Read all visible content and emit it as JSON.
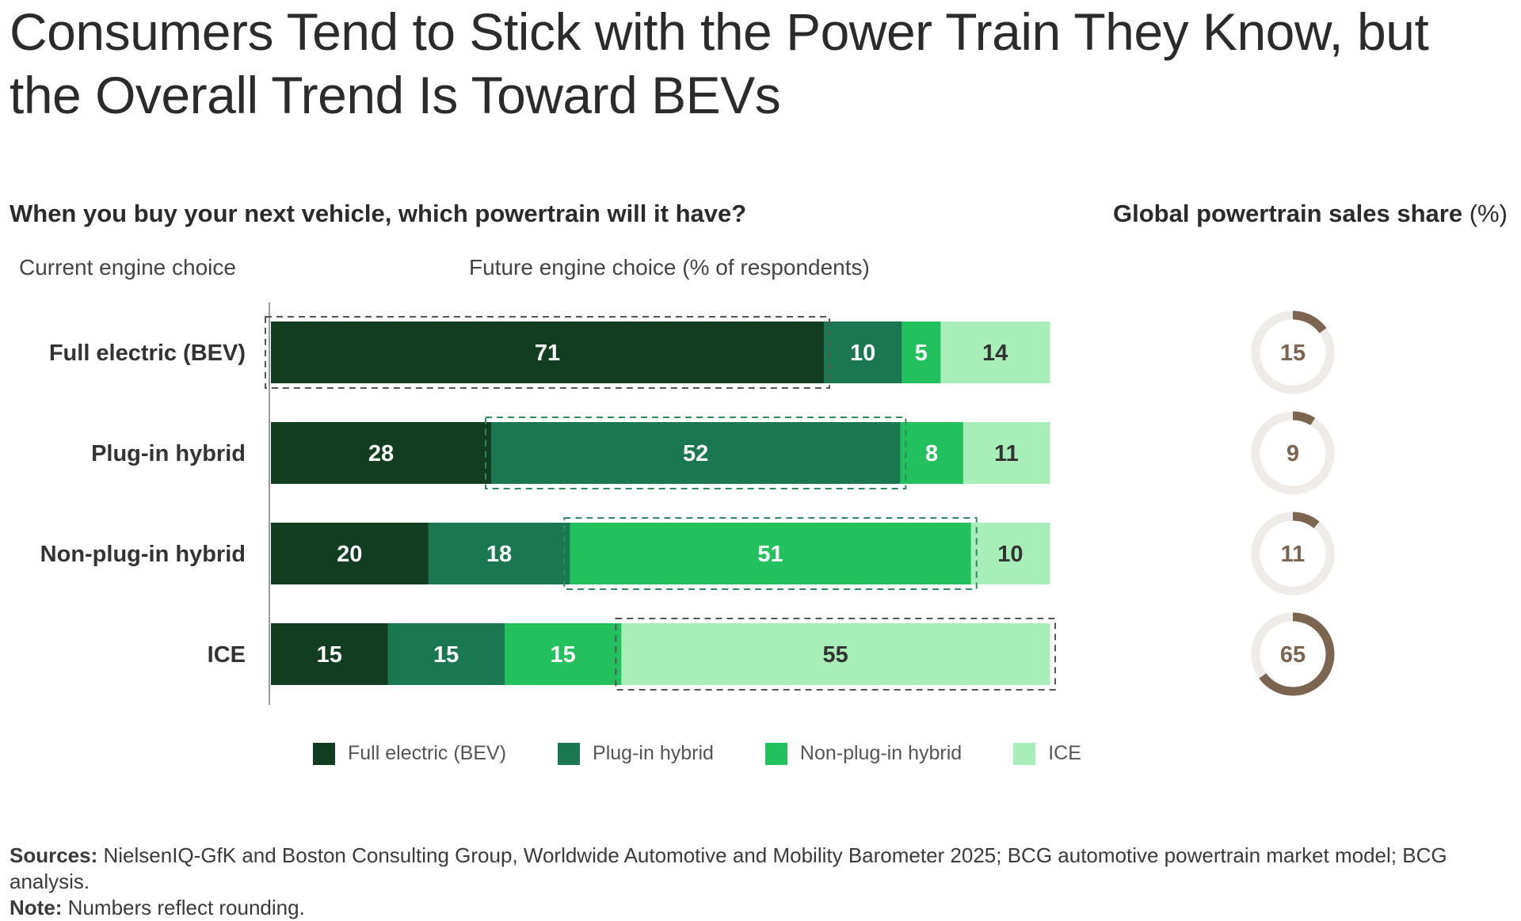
{
  "title": "Consumers Tend to Stick with the Power Train They Know, but the Overall Trend Is Toward BEVs",
  "question": "When you buy your next vehicle, which powertrain will it have?",
  "donut_title": "Global powertrain sales share",
  "donut_unit": "(%)",
  "current_label": "Current engine choice",
  "future_label": "Future engine choice (% of respondents)",
  "colors": {
    "bev": "#123d20",
    "phev": "#1b7752",
    "hev": "#22c15e",
    "ice": "#a8eeb8",
    "donut_fill": "#7b6551",
    "donut_track": "#eeebe8"
  },
  "legend": [
    {
      "key": "bev",
      "label": "Full electric (BEV)"
    },
    {
      "key": "phev",
      "label": "Plug-in hybrid"
    },
    {
      "key": "hev",
      "label": "Non-plug-in hybrid"
    },
    {
      "key": "ice",
      "label": "ICE"
    }
  ],
  "chart_data": {
    "type": "bar",
    "orientation": "horizontal",
    "stacked": true,
    "title": "When you buy your next vehicle, which powertrain will it have?",
    "ylabel": "Current engine choice",
    "xlabel": "Future engine choice (% of respondents)",
    "categories": [
      "Full electric (BEV)",
      "Plug-in hybrid",
      "Non-plug-in hybrid",
      "ICE"
    ],
    "series": [
      {
        "name": "Full electric (BEV)",
        "key": "bev",
        "values": [
          71,
          28,
          20,
          15
        ]
      },
      {
        "name": "Plug-in hybrid",
        "key": "phev",
        "values": [
          10,
          52,
          18,
          15
        ]
      },
      {
        "name": "Non-plug-in hybrid",
        "key": "hev",
        "values": [
          5,
          8,
          51,
          15
        ]
      },
      {
        "name": "ICE",
        "key": "ice",
        "values": [
          14,
          11,
          10,
          55
        ]
      }
    ],
    "highlighted": "segment matching current engine choice (dashed outline)",
    "global_sales_share": {
      "title": "Global powertrain sales share (%)",
      "type": "pie",
      "values": [
        15,
        9,
        11,
        65
      ]
    }
  },
  "sources_label": "Sources:",
  "sources_text": "NielsenIQ-GfK and Boston Consulting Group, Worldwide Automotive and Mobility Barometer 2025; BCG automotive powertrain market model; BCG analysis.",
  "note_label": "Note:",
  "note_text": "Numbers reflect rounding."
}
